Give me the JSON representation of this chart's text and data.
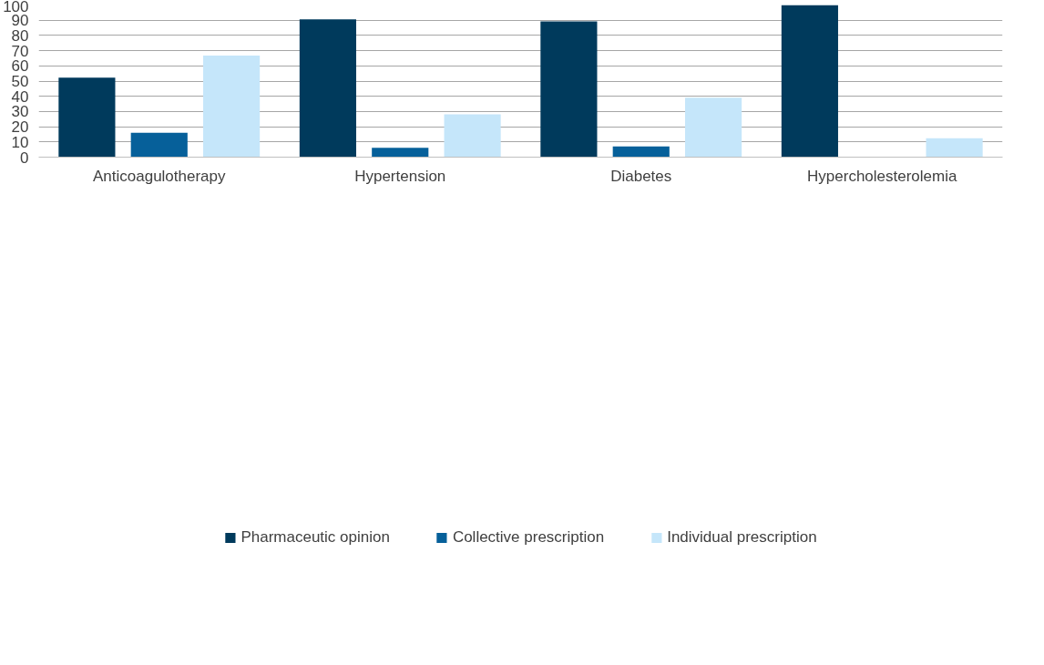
{
  "chart_data": {
    "type": "bar",
    "categories": [
      "Anticoagulotherapy",
      "Hypertension",
      "Diabetes",
      "Hypercholesterolemia"
    ],
    "series": [
      {
        "name": "Pharmaceutic opinion",
        "color": "#003a5c",
        "values": [
          52.3,
          90.5,
          89.2,
          100
        ]
      },
      {
        "name": "Collective prescription",
        "color": "#06609a",
        "values": [
          16.0,
          6.2,
          7.0,
          0
        ]
      },
      {
        "name": "Individual prescription",
        "color": "#c5e6fa",
        "values": [
          66.7,
          28.1,
          39.1,
          12.5
        ]
      }
    ],
    "ylim": [
      0,
      100
    ],
    "yticks": [
      0,
      10,
      20,
      30,
      40,
      50,
      60,
      70,
      80,
      90,
      100
    ],
    "grid": "y",
    "legend": "bottom"
  }
}
